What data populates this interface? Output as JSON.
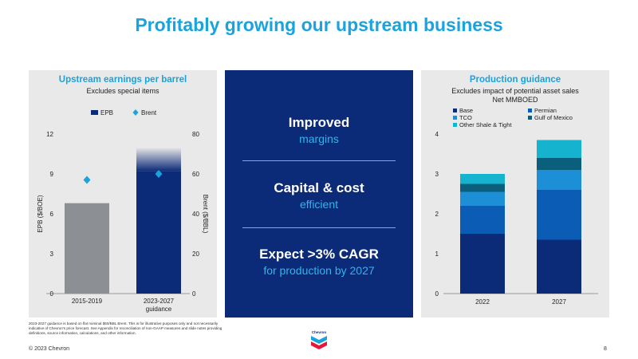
{
  "title": "Profitably growing our upstream business",
  "left_panel": {
    "title": "Upstream earnings per barrel",
    "subtitle": "Excludes special items"
  },
  "middle_panel": {
    "items": [
      {
        "main": "Improved",
        "sub": "margins"
      },
      {
        "main": "Capital & cost",
        "sub": "efficient"
      },
      {
        "main": "Expect >3% CAGR",
        "sub": "for production by 2027"
      }
    ]
  },
  "right_panel": {
    "title": "Production guidance",
    "subtitle_1": "Excludes impact of potential asset sales",
    "subtitle_2": "Net MMBOED"
  },
  "chart_data": [
    {
      "type": "bar",
      "categories": [
        "2015-2019",
        "2023-2027\nguidance"
      ],
      "series": [
        {
          "name": "EPB",
          "axis": "left",
          "kind": "bar",
          "values": [
            6.8,
            11.0
          ]
        },
        {
          "name": "Brent",
          "axis": "right",
          "kind": "marker",
          "values": [
            57,
            60
          ]
        }
      ],
      "ylabel": "EPB ($/BOE)",
      "ylabel_right": "Brent ($/BBL)",
      "ylim": [
        0,
        12
      ],
      "yticks": [
        0,
        3,
        6,
        9,
        12
      ],
      "ylim_right": [
        0,
        80
      ],
      "yticks_right": [
        0,
        20,
        40,
        60,
        80
      ],
      "legend": [
        "EPB",
        "Brent"
      ],
      "legend_position": "top",
      "colors": {
        "bar_2015": "#8c8f94",
        "bar_2023": "#0b2a78",
        "brent": "#1aa3dc"
      }
    },
    {
      "type": "bar",
      "stacked": true,
      "categories": [
        "2022",
        "2027"
      ],
      "series": [
        {
          "name": "Base",
          "values": [
            1.5,
            1.35
          ],
          "color": "#0b2a78"
        },
        {
          "name": "Permian",
          "values": [
            0.7,
            1.25
          ],
          "color": "#0b5cb5"
        },
        {
          "name": "TCO",
          "values": [
            0.35,
            0.5
          ],
          "color": "#1d8fd6"
        },
        {
          "name": "Gulf of Mexico",
          "values": [
            0.2,
            0.3
          ],
          "color": "#0a5f7d"
        },
        {
          "name": "Other Shale & Tight",
          "values": [
            0.25,
            0.45
          ],
          "color": "#16b3cf"
        }
      ],
      "ylim": [
        0,
        4
      ],
      "yticks": [
        0,
        1,
        2,
        3,
        4
      ],
      "legend_position": "top-left"
    }
  ],
  "footnote": "2023-2027 guidance is based on flat nominal $60/BBL Brent. This is for illustrative purposes only and not necessarily indicative of Chevron's price forecast. See Appendix for reconciliation of non-GAAP measures and slide notes providing definitions, source information, calculations, and other information.",
  "copyright": "© 2023 Chevron",
  "page_number": "8",
  "logo_text": "Chevron"
}
